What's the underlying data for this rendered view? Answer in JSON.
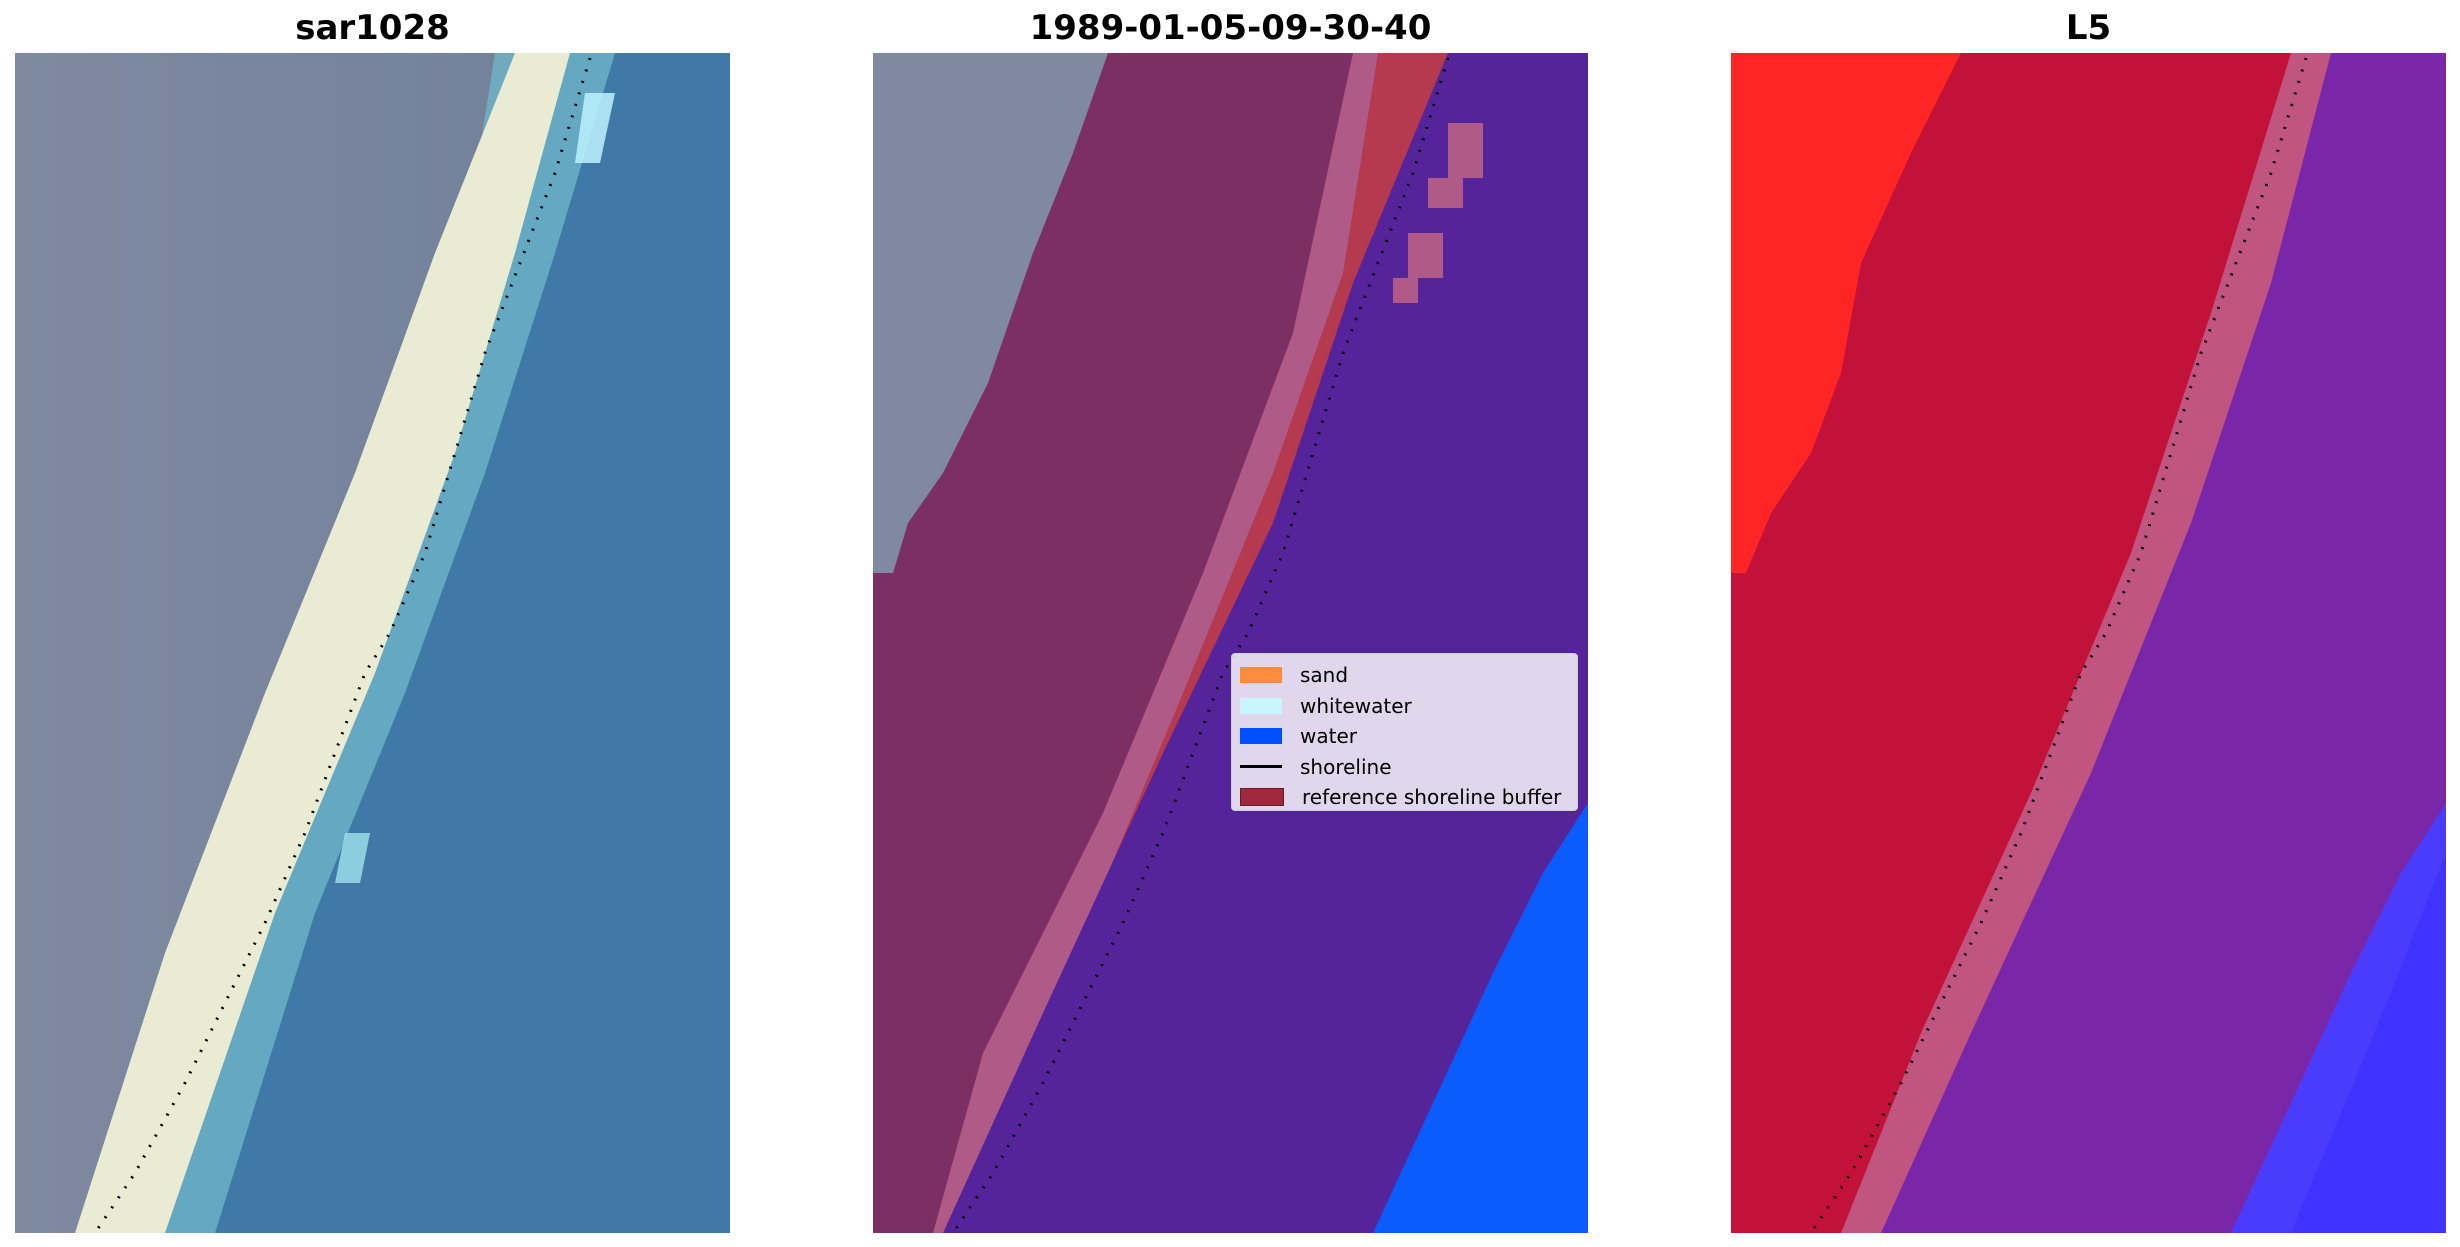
{
  "panels": [
    {
      "title": "sar1028",
      "image": "RGB satellite image of sandy beach with whitewater band and ocean"
    },
    {
      "title": "1989-01-05-09-30-40",
      "image": "Classified image overlay with reference shoreline buffer"
    },
    {
      "title": "L5",
      "image": "Pseudo-colour index image red to purple to blue"
    }
  ],
  "legend": {
    "items": [
      {
        "label": "sand",
        "color": "#ff8c3c"
      },
      {
        "label": "whitewater",
        "color": "#c8f5ff"
      },
      {
        "label": "water",
        "color": "#0050ff"
      },
      {
        "label": "shoreline",
        "color": "#000000"
      },
      {
        "label": "reference shoreline buffer",
        "color": "#a0283c"
      }
    ]
  }
}
